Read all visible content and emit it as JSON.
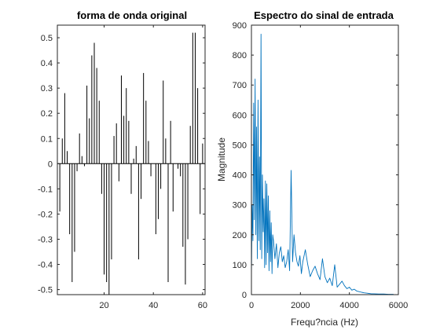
{
  "chart_data": [
    {
      "type": "bar",
      "subtype": "stem",
      "title": "forma de onda original",
      "xlabel": "",
      "ylabel": "",
      "xlim": [
        1,
        61
      ],
      "ylim": [
        -0.52,
        0.55
      ],
      "xticks": [
        20,
        40,
        60
      ],
      "yticks": [
        -0.5,
        -0.4,
        -0.3,
        -0.2,
        -0.1,
        0,
        0.1,
        0.2,
        0.3,
        0.4,
        0.5
      ],
      "ytick_labels": [
        "-0.5",
        "-0.4",
        "-0.3",
        "-0.2",
        "-0.1",
        "0",
        "0.1",
        "0.2",
        "0.3",
        "0.4",
        "0.5"
      ],
      "grid": false,
      "color": "#000000",
      "series": [
        {
          "x": [
            2,
            3,
            4,
            5,
            6,
            7,
            8,
            9,
            10,
            11,
            12,
            13,
            14,
            15,
            16,
            17,
            18,
            19,
            20,
            21,
            22,
            23,
            24,
            25,
            26,
            27,
            28,
            29,
            30,
            31,
            32,
            33,
            34,
            35,
            36,
            37,
            38,
            39,
            40,
            41,
            42,
            43,
            44,
            45,
            46,
            47,
            48,
            49,
            50,
            51,
            52,
            53,
            54,
            55,
            56,
            57,
            58,
            59,
            60,
            61
          ],
          "values": [
            -0.19,
            0.1,
            0.28,
            0.05,
            -0.28,
            -0.47,
            -0.35,
            -0.03,
            0.12,
            0.03,
            -0.01,
            0.31,
            0.18,
            0.43,
            0.48,
            0.38,
            0.25,
            -0.12,
            -0.44,
            -0.47,
            -0.52,
            -0.38,
            0.11,
            0.16,
            -0.07,
            0.35,
            0.19,
            0.3,
            0.17,
            -0.12,
            0.02,
            0.07,
            -0.38,
            -0.14,
            0.36,
            0.25,
            0.09,
            -0.05,
            0.0,
            -0.28,
            -0.22,
            -0.1,
            0.33,
            0.1,
            -0.47,
            0.17,
            -0.19,
            0.0,
            -0.02,
            -0.05,
            -0.33,
            -0.48,
            -0.3,
            0.15,
            0.52,
            0.52,
            0.3,
            -0.2,
            0.08,
            -0.28
          ]
        }
      ]
    },
    {
      "type": "line",
      "title": "Espectro do sinal de entrada",
      "xlabel": "Frequ?ncia (Hz)",
      "ylabel": "Magnitude",
      "xlim": [
        0,
        6000
      ],
      "ylim": [
        0,
        900
      ],
      "xticks": [
        0,
        2000,
        4000,
        6000
      ],
      "yticks": [
        0,
        100,
        200,
        300,
        400,
        500,
        600,
        700,
        800,
        900
      ],
      "grid": false,
      "color": "#0072BD",
      "series": [
        {
          "x": [
            0,
            30,
            60,
            90,
            120,
            150,
            180,
            210,
            240,
            270,
            300,
            330,
            360,
            390,
            420,
            450,
            480,
            510,
            540,
            570,
            600,
            630,
            660,
            690,
            720,
            750,
            780,
            810,
            840,
            870,
            900,
            960,
            1020,
            1080,
            1140,
            1200,
            1260,
            1320,
            1380,
            1440,
            1500,
            1560,
            1620,
            1680,
            1740,
            1800,
            1860,
            1920,
            1980,
            2040,
            2100,
            2200,
            2300,
            2400,
            2500,
            2600,
            2700,
            2800,
            2900,
            3000,
            3100,
            3200,
            3300,
            3400,
            3500,
            3600,
            3700,
            3800,
            3900,
            4000,
            4100,
            4200,
            4300,
            4400,
            4500,
            4600,
            4700,
            4800,
            4900,
            5000,
            5200,
            5400,
            5600,
            5800
          ],
          "values": [
            60,
            300,
            180,
            640,
            250,
            720,
            200,
            560,
            120,
            650,
            180,
            460,
            150,
            870,
            120,
            400,
            210,
            320,
            90,
            380,
            100,
            370,
            140,
            330,
            80,
            280,
            110,
            240,
            70,
            200,
            180,
            120,
            170,
            90,
            140,
            160,
            110,
            130,
            90,
            110,
            150,
            80,
            415,
            110,
            200,
            140,
            110,
            95,
            130,
            70,
            110,
            150,
            100,
            60,
            80,
            95,
            70,
            50,
            120,
            60,
            40,
            55,
            30,
            100,
            25,
            35,
            45,
            30,
            20,
            25,
            15,
            18,
            12,
            10,
            8,
            6,
            5,
            4,
            3,
            3,
            2,
            2,
            1,
            1
          ]
        }
      ]
    }
  ]
}
